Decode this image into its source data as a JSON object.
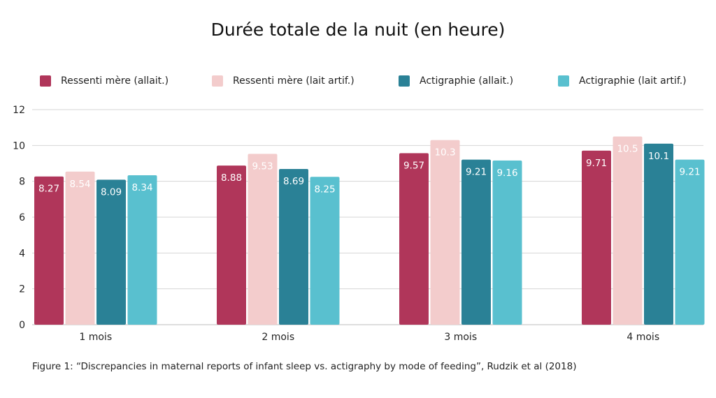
{
  "chart_data": {
    "type": "bar",
    "title": "Durée totale de la nuit (en heure)",
    "categories": [
      "1 mois",
      "2 mois",
      "3 mois",
      "4 mois"
    ],
    "series": [
      {
        "name": "Ressenti mère (allait.)",
        "color": "#b0365a",
        "values": [
          8.27,
          8.88,
          9.57,
          9.71
        ],
        "labels": [
          "8.27",
          "8.88",
          "9.57",
          "9.71"
        ],
        "label_color": "#ffffff"
      },
      {
        "name": "Ressenti mère (lait artif.)",
        "color": "#f3cccc",
        "values": [
          8.54,
          9.53,
          10.3,
          10.5
        ],
        "labels": [
          "8.54",
          "9.53",
          "10.3",
          "10.5"
        ],
        "label_color": "#ffffff"
      },
      {
        "name": "Actigraphie (allait.)",
        "color": "#2a8196",
        "values": [
          8.09,
          8.69,
          9.21,
          10.1
        ],
        "labels": [
          "8.09",
          "8.69",
          "9.21",
          "10.1"
        ],
        "label_color": "#ffffff"
      },
      {
        "name": "Actigraphie (lait artif.)",
        "color": "#59c0cf",
        "values": [
          8.34,
          8.25,
          9.16,
          9.21
        ],
        "labels": [
          "8.34",
          "8.25",
          "9.16",
          "9.21"
        ],
        "label_color": "#ffffff"
      }
    ],
    "ylim": [
      0,
      12
    ],
    "yticks": [
      "0",
      "2",
      "4",
      "6",
      "8",
      "10",
      "12"
    ],
    "grid": true,
    "legend_position": "top",
    "xlabel": "",
    "ylabel": ""
  },
  "caption": "Figure 1: “Discrepancies in maternal reports of infant sleep vs. actigraphy by mode of feeding”, Rudzik et al (2018)"
}
